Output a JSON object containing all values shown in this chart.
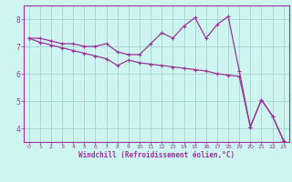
{
  "x": [
    0,
    1,
    2,
    3,
    4,
    5,
    6,
    7,
    8,
    9,
    10,
    11,
    12,
    13,
    14,
    15,
    16,
    17,
    18,
    19,
    20,
    21,
    22,
    23
  ],
  "y_wavy": [
    7.3,
    7.3,
    7.2,
    7.1,
    7.1,
    7.0,
    7.0,
    7.1,
    6.8,
    6.7,
    6.7,
    7.1,
    7.5,
    7.3,
    7.75,
    8.05,
    7.3,
    7.8,
    8.1,
    6.1,
    4.05,
    5.05,
    4.45,
    3.55
  ],
  "y_diagonal": [
    7.3,
    7.15,
    7.05,
    6.95,
    6.85,
    6.75,
    6.65,
    6.55,
    6.3,
    6.5,
    6.4,
    6.35,
    6.3,
    6.25,
    6.2,
    6.15,
    6.1,
    6.0,
    5.95,
    5.9,
    4.05,
    5.05,
    4.45,
    3.55
  ],
  "color_line": "#993399",
  "bg_color": "#cef5f0",
  "grid_color": "#99cccc",
  "axis_color": "#993399",
  "xlabel": "Windchill (Refroidissement éolien,°C)",
  "ylim": [
    3.5,
    8.5
  ],
  "xlim": [
    -0.5,
    23.5
  ],
  "yticks": [
    4,
    5,
    6,
    7,
    8
  ],
  "xticks": [
    0,
    1,
    2,
    3,
    4,
    5,
    6,
    7,
    8,
    9,
    10,
    11,
    12,
    13,
    14,
    15,
    16,
    17,
    18,
    19,
    20,
    21,
    22,
    23
  ]
}
